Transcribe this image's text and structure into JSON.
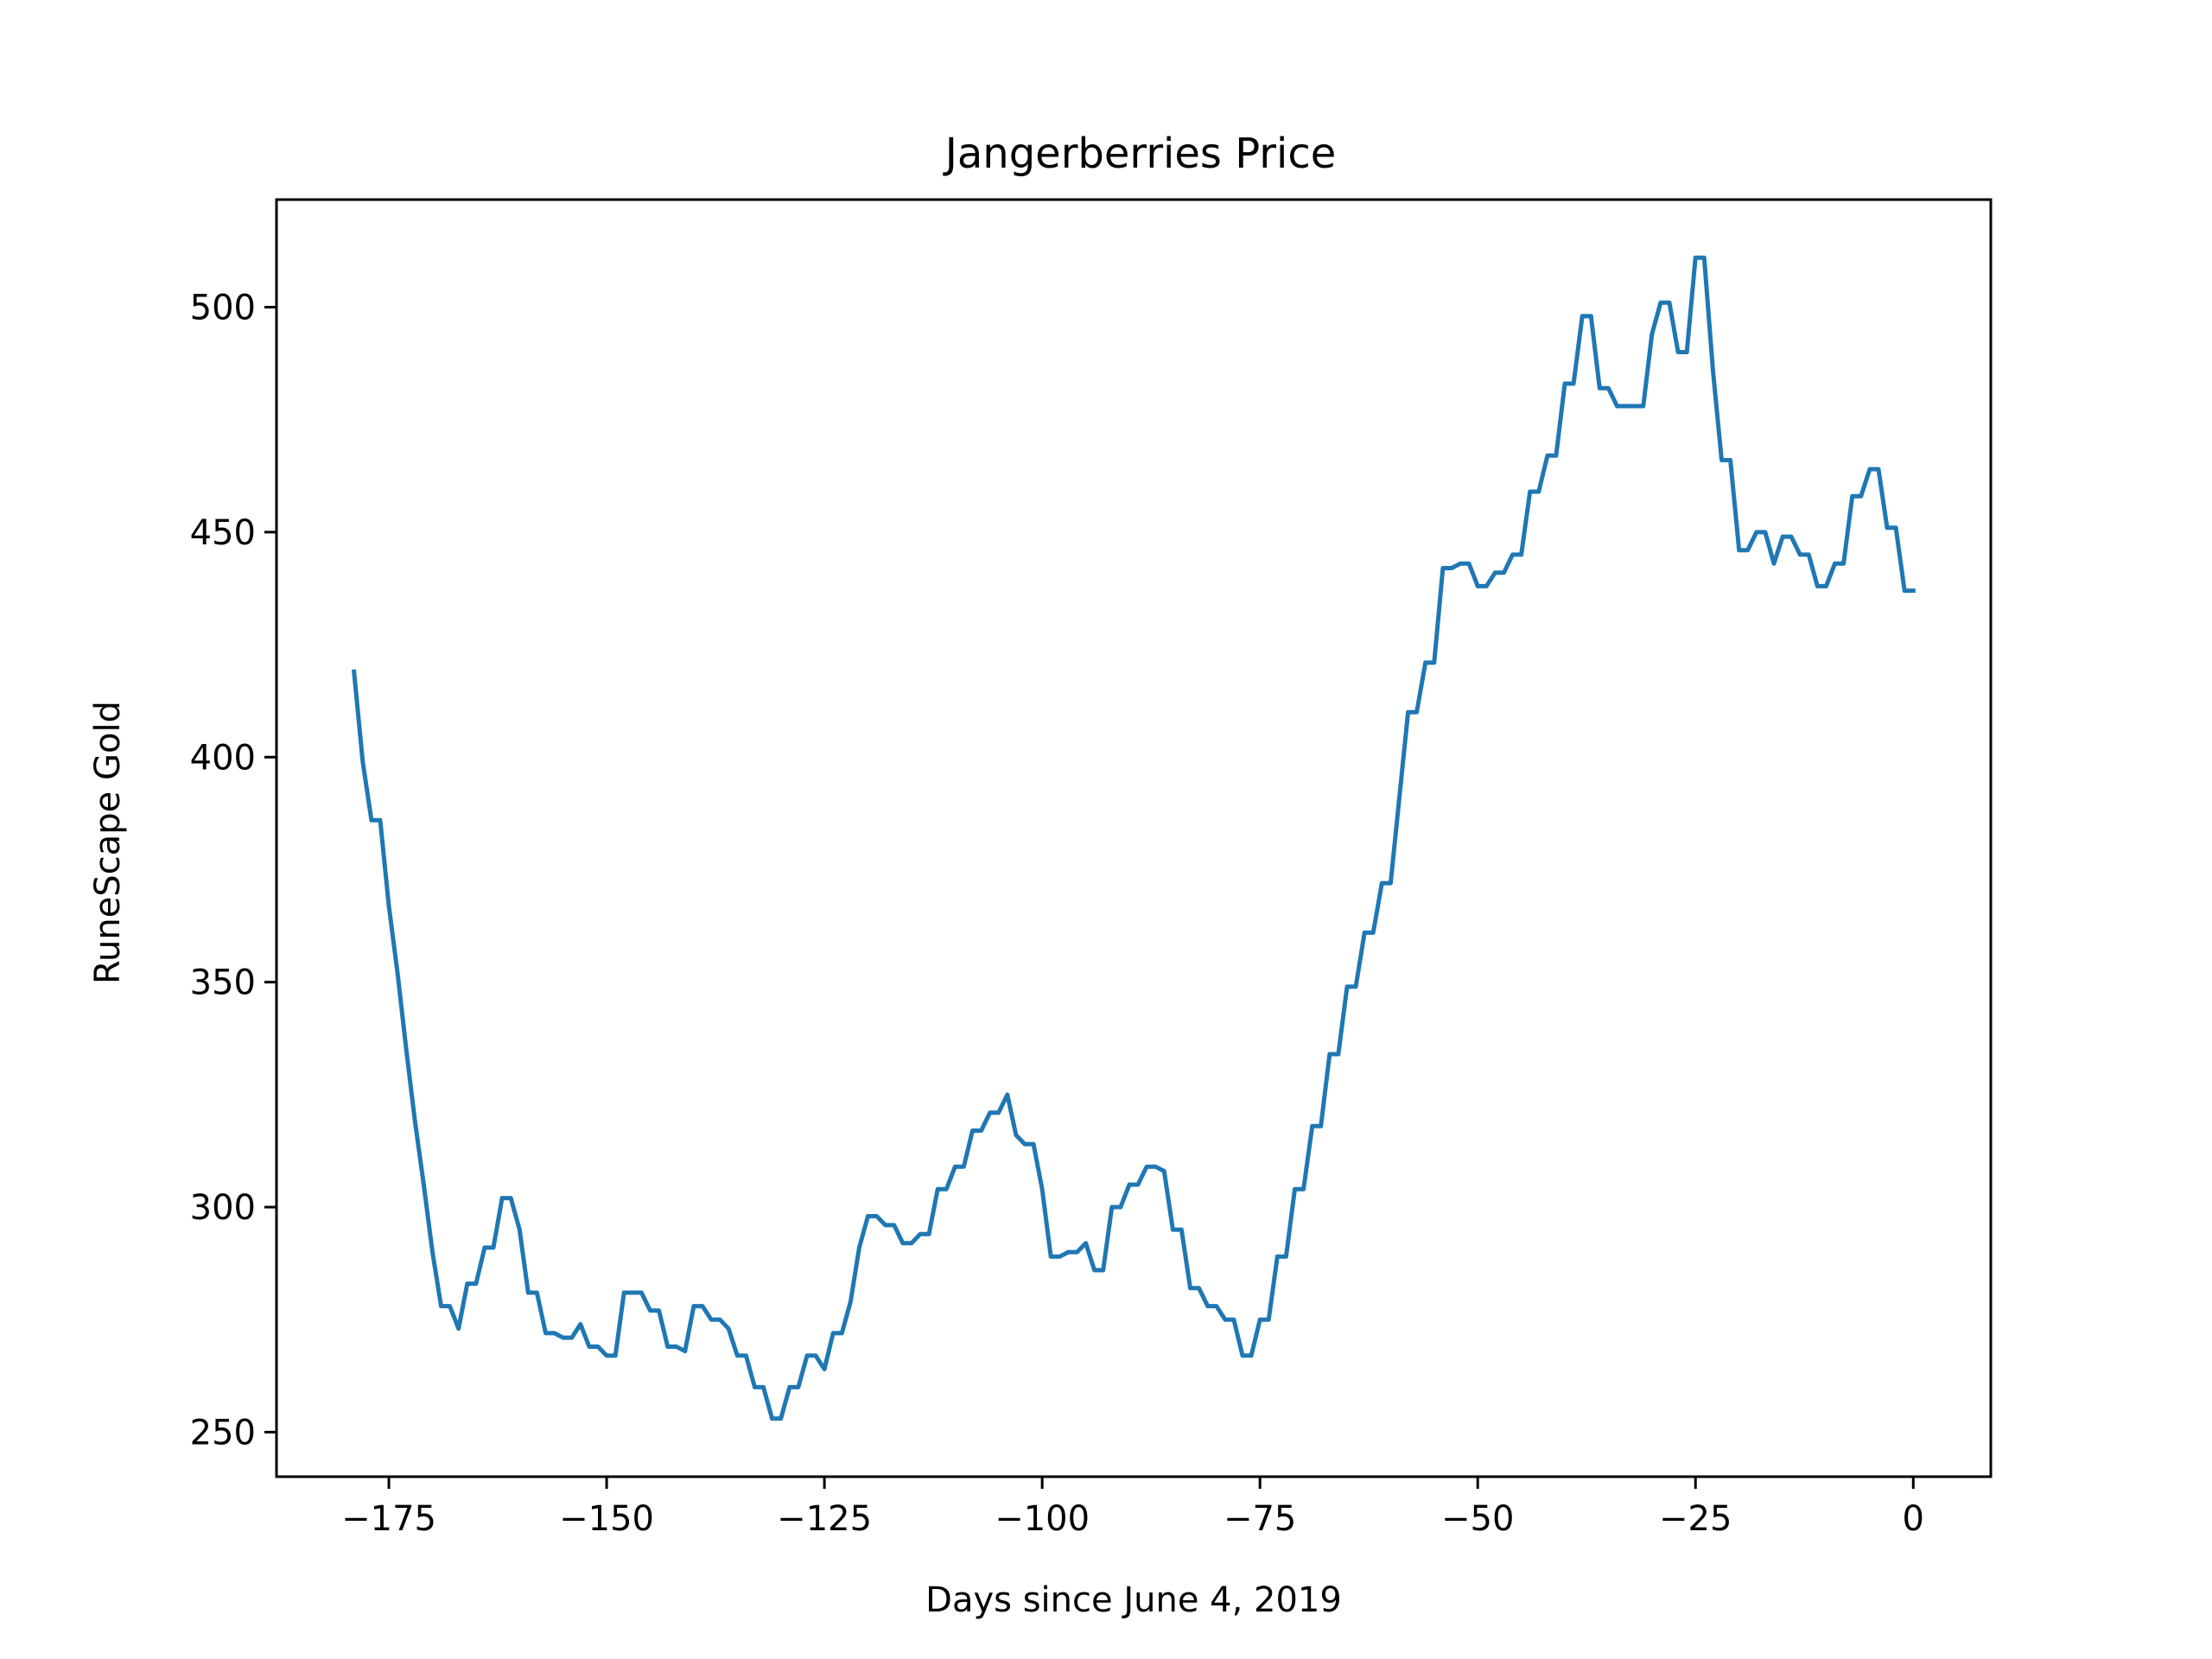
{
  "chart_data": {
    "type": "line",
    "title": "Jangerberries Price",
    "xlabel": "Days since June 4, 2019",
    "ylabel": "RuneScape Gold",
    "xlim": [
      -187.9,
      8.9
    ],
    "ylim": [
      240.1,
      523.9
    ],
    "xticks": [
      -175,
      -150,
      -125,
      -100,
      -75,
      -50,
      -25,
      0
    ],
    "xtick_labels": [
      "−175",
      "−150",
      "−125",
      "−100",
      "−75",
      "−50",
      "−25",
      "0"
    ],
    "yticks": [
      250,
      300,
      350,
      400,
      450,
      500
    ],
    "ytick_labels": [
      "250",
      "300",
      "350",
      "400",
      "450",
      "500"
    ],
    "grid": false,
    "legend": "none",
    "color": "#1f77b4",
    "series": [
      {
        "x": [
          -179,
          -178,
          -177,
          -176,
          -175,
          -174,
          -173,
          -172,
          -171,
          -170,
          -169,
          -168,
          -167,
          -166,
          -165,
          -164,
          -163,
          -162,
          -161,
          -160,
          -159,
          -158,
          -157,
          -156,
          -155,
          -154,
          -153,
          -152,
          -151,
          -150,
          -149,
          -148,
          -147,
          -146,
          -145,
          -144,
          -143,
          -142,
          -141,
          -140,
          -139,
          -138,
          -137,
          -136,
          -135,
          -134,
          -133,
          -132,
          -131,
          -130,
          -129,
          -128,
          -127,
          -126,
          -125,
          -124,
          -123,
          -122,
          -121,
          -120,
          -119,
          -118,
          -117,
          -116,
          -115,
          -114,
          -113,
          -112,
          -111,
          -110,
          -109,
          -108,
          -107,
          -106,
          -105,
          -104,
          -103,
          -102,
          -101,
          -100,
          -99,
          -98,
          -97,
          -96,
          -95,
          -94,
          -93,
          -92,
          -91,
          -90,
          -89,
          -88,
          -87,
          -86,
          -85,
          -84,
          -83,
          -82,
          -81,
          -80,
          -79,
          -78,
          -77,
          -76,
          -75,
          -74,
          -73,
          -72,
          -71,
          -70,
          -69,
          -68,
          -67,
          -66,
          -65,
          -64,
          -63,
          -62,
          -61,
          -60,
          -59,
          -58,
          -57,
          -56,
          -55,
          -54,
          -53,
          -52,
          -51,
          -50,
          -49,
          -48,
          -47,
          -46,
          -45,
          -44,
          -43,
          -42,
          -41,
          -40,
          -39,
          -38,
          -37,
          -36,
          -35,
          -34,
          -33,
          -32,
          -31,
          -30,
          -29,
          -28,
          -27,
          -26,
          -25,
          -24,
          -23,
          -22,
          -21,
          -20,
          -19,
          -18,
          -17,
          -16,
          -15,
          -14,
          -13,
          -12,
          -11,
          -10,
          -9,
          -8,
          -7,
          -6,
          -5,
          -4,
          -3,
          -2,
          -1,
          0
        ],
        "y": [
          419,
          399,
          386,
          386,
          367,
          352,
          335,
          319,
          305,
          290,
          278,
          278,
          273,
          283,
          283,
          291,
          291,
          302,
          302,
          295,
          281,
          281,
          272,
          272,
          271,
          271,
          274,
          269,
          269,
          267,
          267,
          281,
          281,
          281,
          277,
          277,
          269,
          269,
          268,
          278,
          278,
          275,
          275,
          273,
          267,
          267,
          260,
          260,
          253,
          253,
          260,
          260,
          267,
          267,
          264,
          272,
          272,
          279,
          291,
          298,
          298,
          296,
          296,
          292,
          292,
          294,
          294,
          304,
          304,
          309,
          309,
          317,
          317,
          321,
          321,
          325,
          316,
          314,
          314,
          304,
          289,
          289,
          290,
          290,
          292,
          286,
          286,
          300,
          300,
          305,
          305,
          309,
          309,
          308,
          295,
          295,
          282,
          282,
          278,
          278,
          275,
          275,
          267,
          267,
          275,
          275,
          289,
          289,
          304,
          304,
          318,
          318,
          334,
          334,
          349,
          349,
          361,
          361,
          372,
          372,
          391,
          410,
          410,
          421,
          421,
          442,
          442,
          443,
          443,
          438,
          438,
          441,
          441,
          445,
          445,
          459,
          459,
          467,
          467,
          483,
          483,
          498,
          498,
          482,
          482,
          478,
          478,
          478,
          478,
          494,
          501,
          501,
          490,
          490,
          511,
          511,
          486,
          466,
          466,
          446,
          446,
          450,
          450,
          443,
          449,
          449,
          445,
          445,
          438,
          438,
          443,
          443,
          458,
          458,
          464,
          464,
          451,
          451,
          437,
          437
        ]
      }
    ]
  }
}
